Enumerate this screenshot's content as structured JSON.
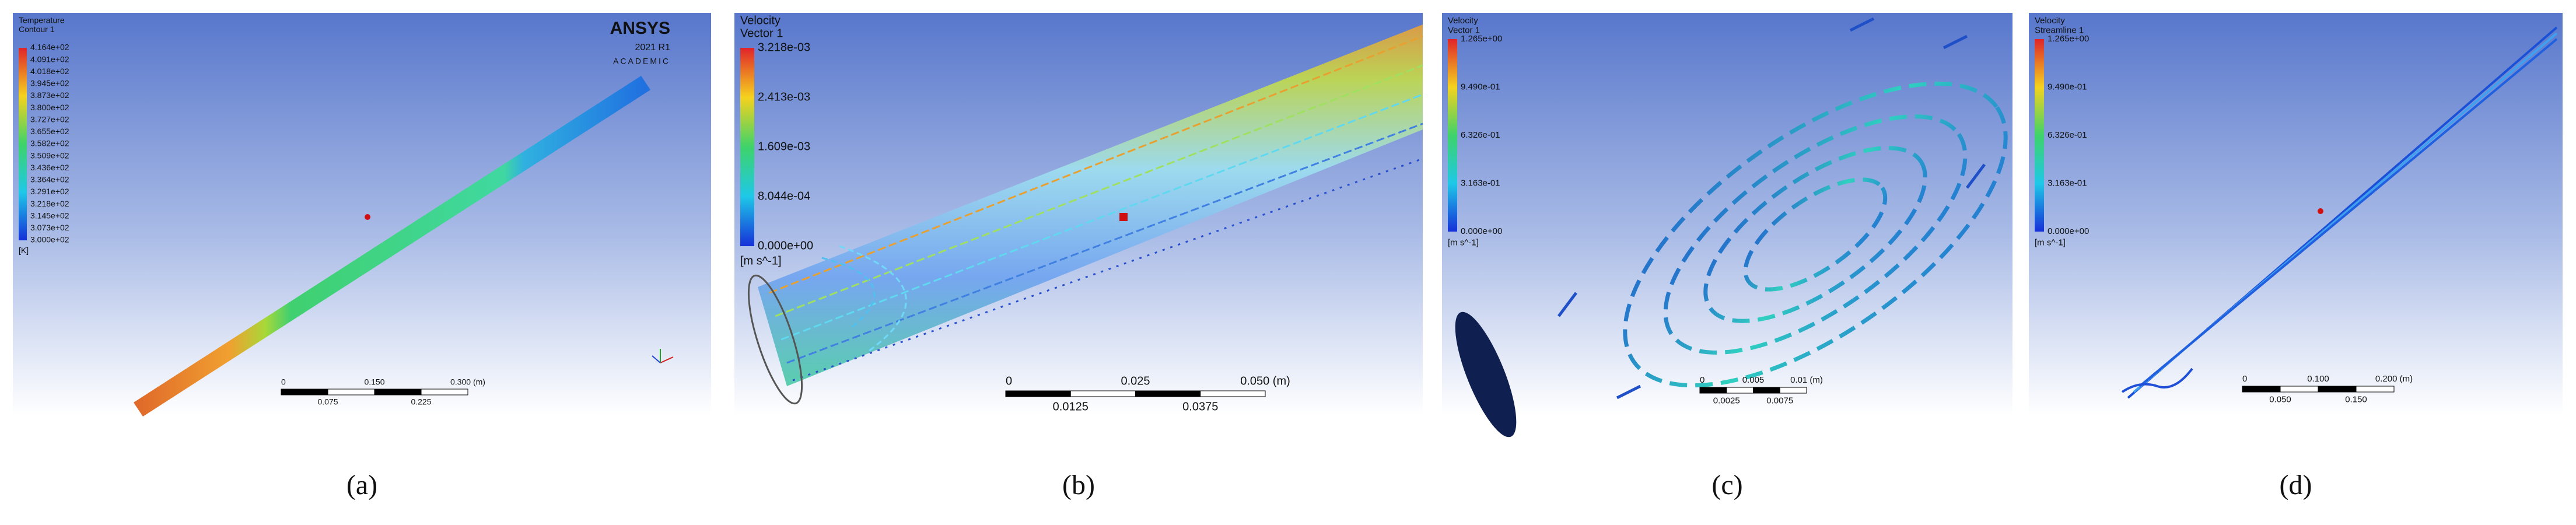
{
  "panels": [
    {
      "caption": "(a)",
      "legend": {
        "title": "Temperature",
        "subtitle": "Contour 1",
        "labels": [
          "4.164e+02",
          "4.091e+02",
          "4.018e+02",
          "3.945e+02",
          "3.873e+02",
          "3.800e+02",
          "3.727e+02",
          "3.655e+02",
          "3.582e+02",
          "3.509e+02",
          "3.436e+02",
          "3.364e+02",
          "3.291e+02",
          "3.218e+02",
          "3.145e+02",
          "3.073e+02",
          "3.000e+02"
        ],
        "unit": "[K]"
      },
      "scale": {
        "top": [
          "0",
          "0.150",
          "0.300 (m)"
        ],
        "bottom": [
          "0.075",
          "0.225"
        ]
      },
      "logo": {
        "name": "ANSYS",
        "version": "2021 R1",
        "edition": "ACADEMIC"
      }
    },
    {
      "caption": "(b)",
      "legend": {
        "title": "Velocity",
        "subtitle": "Vector 1",
        "labels": [
          "3.218e-03",
          "2.413e-03",
          "1.609e-03",
          "8.044e-04",
          "0.000e+00"
        ],
        "unit": "[m s^-1]"
      },
      "scale": {
        "top": [
          "0",
          "0.025",
          "0.050 (m)"
        ],
        "bottom": [
          "0.0125",
          "0.0375"
        ]
      }
    },
    {
      "caption": "(c)",
      "legend": {
        "title": "Velocity",
        "subtitle": "Vector 1",
        "labels": [
          "1.265e+00",
          "9.490e-01",
          "6.326e-01",
          "3.163e-01",
          "0.000e+00"
        ],
        "unit": "[m s^-1]"
      },
      "scale": {
        "top": [
          "0",
          "0.005",
          "0.01 (m)"
        ],
        "bottom": [
          "0.0025",
          "0.0075"
        ]
      }
    },
    {
      "caption": "(d)",
      "legend": {
        "title": "Velocity",
        "subtitle": "Streamline 1",
        "labels": [
          "1.265e+00",
          "9.490e-01",
          "6.326e-01",
          "3.163e-01",
          "0.000e+00"
        ],
        "unit": "[m s^-1]"
      },
      "scale": {
        "top": [
          "0",
          "0.100",
          "0.200 (m)"
        ],
        "bottom": [
          "0.050",
          "0.150"
        ]
      }
    }
  ]
}
